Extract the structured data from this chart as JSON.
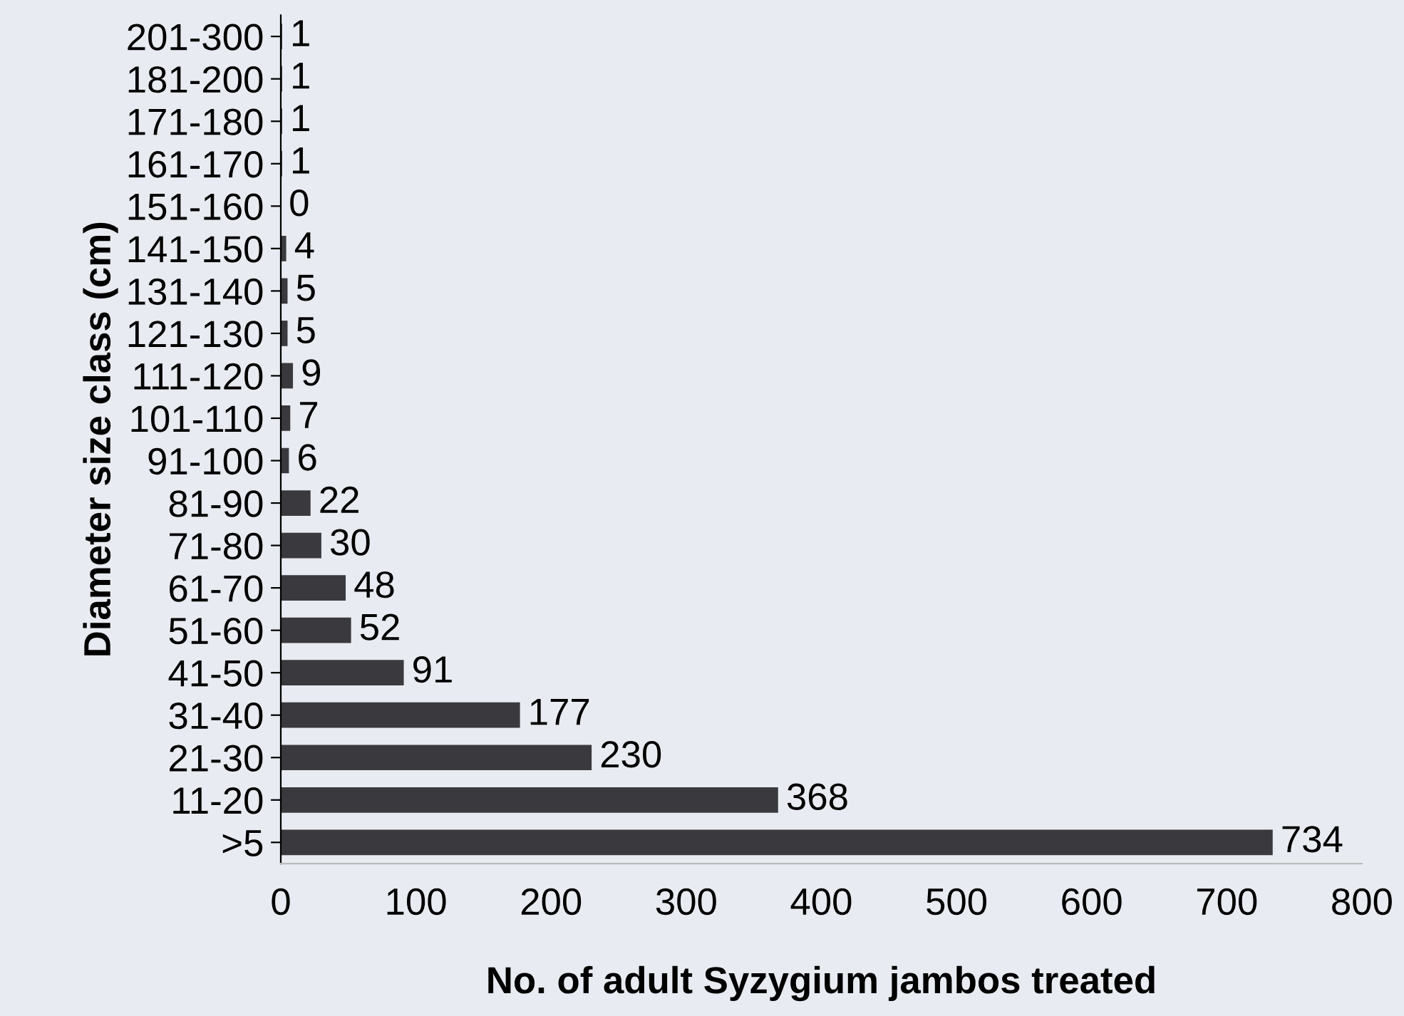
{
  "chart_data": {
    "type": "bar",
    "orientation": "horizontal",
    "xlabel": "No. of adult Syzygium jambos treated",
    "ylabel": "Diameter size class (cm)",
    "categories": [
      "201-300",
      "181-200",
      "171-180",
      "161-170",
      "151-160",
      "141-150",
      "131-140",
      "121-130",
      "111-120",
      "101-110",
      "91-100",
      "81-90",
      "71-80",
      "61-70",
      "51-60",
      "41-50",
      "31-40",
      "21-30",
      "11-20",
      ">5"
    ],
    "values": [
      1,
      1,
      1,
      1,
      0,
      4,
      5,
      5,
      9,
      7,
      6,
      22,
      30,
      48,
      52,
      91,
      177,
      230,
      368,
      734
    ],
    "color": "#3a3a3e",
    "data_labels": true,
    "xlim": [
      0,
      800
    ],
    "xticks": [
      0,
      100,
      200,
      300,
      400,
      500,
      600,
      700,
      800
    ],
    "grid": false
  }
}
